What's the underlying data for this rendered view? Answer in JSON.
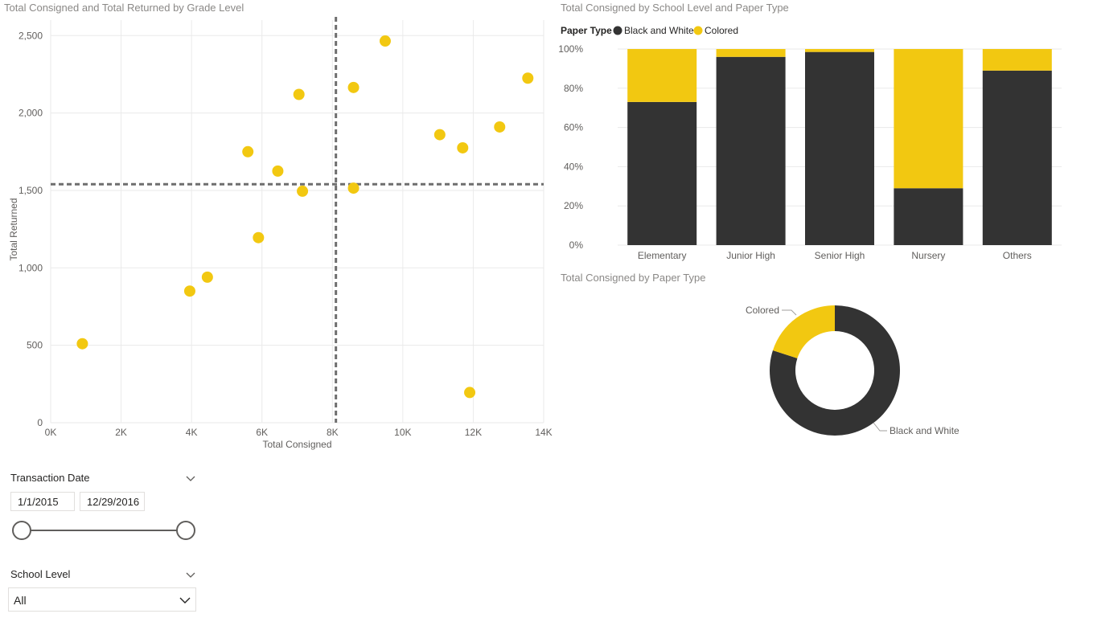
{
  "colors": {
    "black_white": "#333333",
    "colored": "#F2C811",
    "scatter": "#F2C811",
    "reference_line": "#6e6e6e"
  },
  "scatter_title": "Total Consigned and Total Returned by Grade Level",
  "bar_title": "Total Consigned by School Level and Paper Type",
  "donut_title": "Total Consigned by Paper Type",
  "legend": {
    "title": "Paper Type",
    "items": [
      "Black and White",
      "Colored"
    ]
  },
  "filters": {
    "transaction_date": {
      "label": "Transaction Date",
      "start": "1/1/2015",
      "end": "12/29/2016",
      "range_start_fraction": 0.0,
      "range_end_fraction": 1.0
    },
    "school_level": {
      "label": "School Level",
      "value": "All"
    }
  },
  "chart_data": [
    {
      "type": "scatter",
      "title": "Total Consigned and Total Returned by Grade Level",
      "xlabel": "Total Consigned",
      "ylabel": "Total Returned",
      "xlim": [
        0,
        14000
      ],
      "ylim": [
        0,
        2600
      ],
      "x_ticks": [
        0,
        2000,
        4000,
        6000,
        8000,
        10000,
        12000,
        14000
      ],
      "x_tick_labels": [
        "0K",
        "2K",
        "4K",
        "6K",
        "8K",
        "10K",
        "12K",
        "14K"
      ],
      "y_ticks": [
        0,
        500,
        1000,
        1500,
        2000,
        2500
      ],
      "y_tick_labels": [
        "0",
        "500",
        "1,000",
        "1,500",
        "2,000",
        "2,500"
      ],
      "reference_lines": {
        "x": 8100,
        "y": 1540
      },
      "grid": true,
      "points": [
        {
          "x": 900,
          "y": 510
        },
        {
          "x": 3950,
          "y": 850
        },
        {
          "x": 4450,
          "y": 940
        },
        {
          "x": 5600,
          "y": 1750
        },
        {
          "x": 5900,
          "y": 1195
        },
        {
          "x": 6450,
          "y": 1625
        },
        {
          "x": 7050,
          "y": 2120
        },
        {
          "x": 7150,
          "y": 1495
        },
        {
          "x": 8600,
          "y": 2165
        },
        {
          "x": 8600,
          "y": 1515
        },
        {
          "x": 9500,
          "y": 2465
        },
        {
          "x": 11050,
          "y": 1860
        },
        {
          "x": 11700,
          "y": 1775
        },
        {
          "x": 11900,
          "y": 195
        },
        {
          "x": 12750,
          "y": 1910
        },
        {
          "x": 13550,
          "y": 2225
        }
      ]
    },
    {
      "type": "bar",
      "stacked": "100%",
      "title": "Total Consigned by School Level and Paper Type",
      "categories": [
        "Elementary",
        "Junior High",
        "Senior High",
        "Nursery",
        "Others"
      ],
      "y_tick_labels": [
        "0%",
        "20%",
        "40%",
        "60%",
        "80%",
        "100%"
      ],
      "ylim": [
        0,
        100
      ],
      "legend_position": "top-left",
      "series": [
        {
          "name": "Black and White",
          "values": [
            73,
            96,
            98.5,
            29,
            89
          ]
        },
        {
          "name": "Colored",
          "values": [
            27,
            4,
            1.5,
            71,
            11
          ]
        }
      ]
    },
    {
      "type": "pie",
      "donut": true,
      "title": "Total Consigned by Paper Type",
      "labels": [
        "Black and White",
        "Colored"
      ],
      "values": [
        80,
        20
      ]
    }
  ]
}
